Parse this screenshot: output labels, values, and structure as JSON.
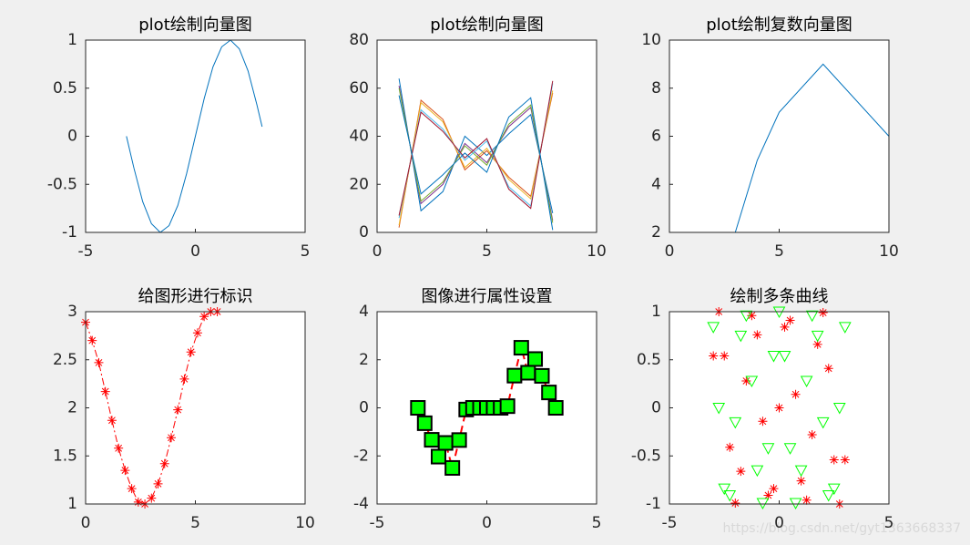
{
  "chart_data": [
    {
      "type": "line",
      "title": "plot绘制向量图",
      "xlim": [
        -5,
        5
      ],
      "xticks": [
        -5,
        0,
        5
      ],
      "ylim": [
        -1,
        1
      ],
      "yticks": [
        -1,
        -0.5,
        0,
        0.5,
        1
      ],
      "x": [
        -3.14,
        -2.8,
        -2.4,
        -2.0,
        -1.6,
        -1.2,
        -0.8,
        -0.4,
        0,
        0.4,
        0.8,
        1.2,
        1.6,
        2.0,
        2.4,
        2.8,
        3.04
      ],
      "series": [
        {
          "color": "#0072BD",
          "values": [
            0,
            -0.33,
            -0.68,
            -0.91,
            -1.0,
            -0.93,
            -0.72,
            -0.39,
            0,
            0.39,
            0.72,
            0.93,
            1.0,
            0.91,
            0.68,
            0.33,
            0.1
          ]
        }
      ]
    },
    {
      "type": "line",
      "title": "plot绘制向量图",
      "xlim": [
        0,
        10
      ],
      "xticks": [
        0,
        5,
        10
      ],
      "ylim": [
        0,
        80
      ],
      "yticks": [
        0,
        20,
        40,
        60,
        80
      ],
      "x": [
        1,
        2,
        3,
        4,
        5,
        6,
        7,
        8
      ],
      "series": [
        {
          "color": "#0072BD",
          "values": [
            64,
            9,
            17,
            40,
            32,
            41,
            49,
            8
          ]
        },
        {
          "color": "#D95319",
          "values": [
            2,
            55,
            47,
            26,
            34,
            23,
            15,
            58
          ]
        },
        {
          "color": "#EDB120",
          "values": [
            3,
            54,
            46,
            27,
            35,
            22,
            14,
            59
          ]
        },
        {
          "color": "#7E2F8E",
          "values": [
            61,
            12,
            20,
            37,
            29,
            44,
            52,
            5
          ]
        },
        {
          "color": "#77AC30",
          "values": [
            60,
            13,
            21,
            36,
            28,
            45,
            53,
            4
          ]
        },
        {
          "color": "#4DBEEE",
          "values": [
            6,
            51,
            43,
            30,
            38,
            19,
            11,
            62
          ]
        },
        {
          "color": "#A2142F",
          "values": [
            7,
            50,
            42,
            31,
            39,
            18,
            10,
            63
          ]
        },
        {
          "color": "#0072BD",
          "values": [
            57,
            16,
            24,
            33,
            25,
            48,
            56,
            1
          ]
        }
      ]
    },
    {
      "type": "line",
      "title": "plot绘制复数向量图",
      "xlim": [
        0,
        10
      ],
      "xticks": [
        0,
        5,
        10
      ],
      "ylim": [
        2,
        10
      ],
      "yticks": [
        2,
        4,
        6,
        8,
        10
      ],
      "x": [
        3,
        4,
        5,
        7,
        10
      ],
      "series": [
        {
          "color": "#0072BD",
          "values": [
            2,
            5,
            7,
            9,
            6
          ]
        }
      ]
    },
    {
      "type": "line",
      "title": "给图形进行标识",
      "xlim": [
        0,
        10
      ],
      "xticks": [
        0,
        5,
        10
      ],
      "ylim": [
        1,
        3
      ],
      "yticks": [
        1,
        1.5,
        2,
        2.5,
        3
      ],
      "x": [
        0,
        0.3,
        0.6,
        0.9,
        1.2,
        1.5,
        1.8,
        2.1,
        2.4,
        2.7,
        3.0,
        3.3,
        3.6,
        3.9,
        4.2,
        4.5,
        4.8,
        5.1,
        5.4,
        5.7,
        6.0
      ],
      "series": [
        {
          "color": "#ff0000",
          "line_style": "dash-dot",
          "marker": "asterisk",
          "values": [
            2.89,
            2.7,
            2.47,
            2.17,
            1.87,
            1.58,
            1.35,
            1.16,
            1.02,
            1.0,
            1.06,
            1.21,
            1.42,
            1.69,
            1.98,
            2.3,
            2.58,
            2.78,
            2.95,
            3.0,
            3.0
          ]
        }
      ]
    },
    {
      "type": "line",
      "title": "图像进行属性设置",
      "xlim": [
        -5,
        5
      ],
      "xticks": [
        -5,
        0,
        5
      ],
      "ylim": [
        -4,
        4
      ],
      "yticks": [
        -4,
        -2,
        0,
        2,
        4
      ],
      "x": [
        -3.14,
        -2.83,
        -2.51,
        -2.2,
        -1.88,
        -1.57,
        -1.26,
        -0.94,
        -0.63,
        -0.31,
        0,
        0.31,
        0.63,
        0.94,
        1.26,
        1.57,
        1.88,
        2.2,
        2.51,
        2.83,
        3.14
      ],
      "series": [
        {
          "color": "#ff0000",
          "line_style": "dashed",
          "line_width": 2,
          "marker": "square",
          "marker_fill": "#00ff00",
          "marker_edge": "#000000",
          "values": [
            0,
            -0.64,
            -1.33,
            -2.03,
            -1.46,
            -2.5,
            -1.34,
            -0.07,
            0,
            0,
            0,
            0,
            0,
            0.07,
            1.34,
            2.5,
            1.46,
            2.03,
            1.33,
            0.64,
            0
          ]
        }
      ]
    },
    {
      "type": "scatter",
      "title": "绘制多条曲线",
      "xlim": [
        -5,
        5
      ],
      "xticks": [
        -5,
        0,
        5
      ],
      "ylim": [
        -1,
        1
      ],
      "yticks": [
        -1,
        -0.5,
        0,
        0.5,
        1
      ],
      "x": [
        -3,
        -2.75,
        -2.5,
        -2.25,
        -2,
        -1.75,
        -1.5,
        -1.25,
        -1,
        -0.75,
        -0.5,
        -0.25,
        0,
        0.25,
        0.5,
        0.75,
        1,
        1.25,
        1.5,
        1.75,
        2,
        2.25,
        2.5,
        2.75,
        3
      ],
      "series": [
        {
          "color": "#ff0000",
          "marker": "asterisk",
          "values": [
            0.54,
            1.0,
            0.54,
            -0.41,
            -0.99,
            -0.66,
            0.28,
            0.96,
            0.76,
            -0.14,
            -0.91,
            -0.84,
            0,
            0.84,
            0.91,
            0.14,
            -0.76,
            -0.96,
            -0.28,
            0.66,
            0.99,
            0.41,
            -0.54,
            -1.0,
            -0.54
          ]
        },
        {
          "color": "#00ff00",
          "marker": "triangle-down",
          "values": [
            0.84,
            0,
            -0.84,
            -0.91,
            -0.15,
            0.75,
            0.96,
            0.28,
            -0.65,
            -0.99,
            -0.42,
            0.54,
            1,
            0.54,
            -0.42,
            -0.99,
            -0.65,
            0.28,
            0.96,
            0.75,
            -0.15,
            -0.91,
            -0.84,
            0,
            0.84
          ]
        }
      ]
    }
  ],
  "watermark": "https://blog.csdn.net/gyt1363668337"
}
